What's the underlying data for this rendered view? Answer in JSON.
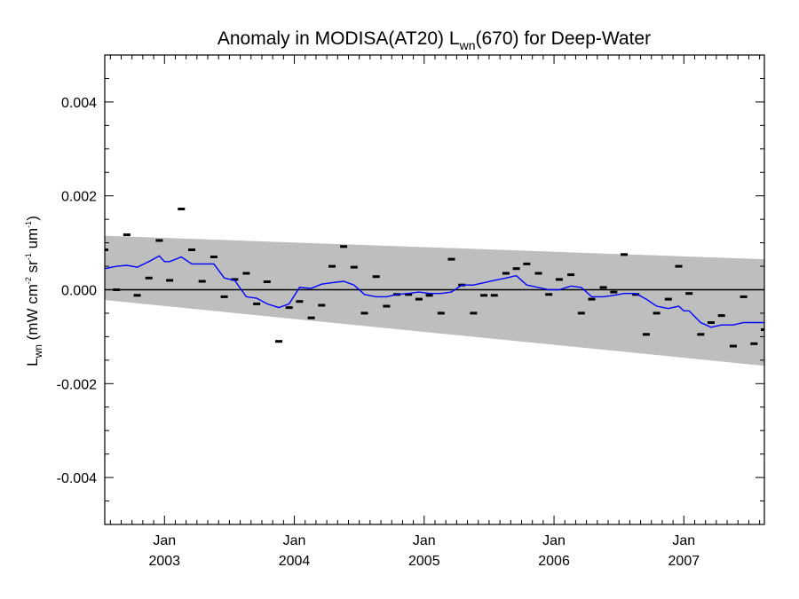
{
  "chart_data": {
    "type": "line",
    "title": {
      "pre": "Anomaly in MODISA(AT20) L",
      "sub": "wn",
      "post": "(670) for Deep-Water"
    },
    "ylabel": {
      "pre": "L",
      "sub": "wn",
      "units_open": " (mW cm",
      "sup1": "-2",
      "units_mid": " sr",
      "sup2": "-1",
      "units_mid2": " um",
      "sup3": "-1",
      "units_close": ")"
    },
    "xlim": [
      2002.54,
      2007.62
    ],
    "ylim": [
      -0.005,
      0.005
    ],
    "x_ticks": [
      {
        "x": 2003.0,
        "month": "Jan",
        "year": "2003"
      },
      {
        "x": 2004.0,
        "month": "Jan",
        "year": "2004"
      },
      {
        "x": 2005.0,
        "month": "Jan",
        "year": "2005"
      },
      {
        "x": 2006.0,
        "month": "Jan",
        "year": "2006"
      },
      {
        "x": 2007.0,
        "month": "Jan",
        "year": "2007"
      }
    ],
    "y_ticks": [
      {
        "value": 0.004,
        "label": "0.004"
      },
      {
        "value": 0.002,
        "label": "0.002"
      },
      {
        "value": 0.0,
        "label": "0.000"
      },
      {
        "value": -0.002,
        "label": "-0.002"
      },
      {
        "value": -0.004,
        "label": "-0.004"
      }
    ],
    "zero_line": 0.0,
    "confidence_band": {
      "x": [
        2002.54,
        2007.62
      ],
      "upper": [
        0.00115,
        0.00065
      ],
      "lower": [
        -0.00022,
        -0.00162
      ],
      "color": "#bebebe"
    },
    "series": [
      {
        "style": "marker",
        "color": "#000000",
        "x": [
          2002.54,
          2002.63,
          2002.71,
          2002.79,
          2002.96,
          2003.04,
          2002.88,
          2003.13,
          2003.21,
          2003.29,
          2003.38,
          2003.46,
          2003.54,
          2003.63,
          2003.71,
          2003.79,
          2003.88,
          2003.96,
          2004.04,
          2004.13,
          2004.21,
          2004.29,
          2004.38,
          2004.46,
          2004.54,
          2004.63,
          2004.71,
          2004.79,
          2004.88,
          2004.96,
          2005.04,
          2005.13,
          2005.21,
          2005.29,
          2005.38,
          2005.46,
          2005.54,
          2005.63,
          2005.71,
          2005.79,
          2005.88,
          2005.96,
          2006.04,
          2006.13,
          2006.21,
          2006.29,
          2006.38,
          2006.46,
          2006.54,
          2006.63,
          2006.71,
          2006.79,
          2006.88,
          2006.96,
          2007.04,
          2007.13,
          2007.21,
          2007.29,
          2007.38,
          2007.46,
          2007.54,
          2007.62
        ],
        "y": [
          0.00085,
          0.0,
          0.00117,
          -0.00012,
          0.00105,
          0.0002,
          0.00025,
          0.00172,
          0.00085,
          0.00018,
          0.0007,
          -0.00015,
          0.00022,
          0.00035,
          -0.0003,
          0.00017,
          -0.0011,
          -0.00038,
          -0.00025,
          -0.0006,
          -0.00033,
          0.0005,
          0.00092,
          0.00048,
          -0.0005,
          0.00028,
          -0.00035,
          -0.0001,
          -0.0001,
          -0.0002,
          -0.00012,
          -0.0005,
          0.00065,
          0.0001,
          -0.0005,
          -0.00012,
          -0.00012,
          0.00035,
          0.00045,
          0.00055,
          0.00035,
          -0.0001,
          0.00022,
          0.00032,
          -0.0005,
          -0.0002,
          5e-05,
          -5e-05,
          0.00075,
          -0.0001,
          -0.00095,
          -0.0005,
          -0.0002,
          0.0005,
          -8e-05,
          -0.00095,
          -0.0007,
          -0.00055,
          -0.0012,
          -0.00015,
          -0.00115,
          -0.00085
        ]
      },
      {
        "style": "line",
        "color": "#0000ff",
        "x": [
          2002.54,
          2002.63,
          2002.71,
          2002.79,
          2002.88,
          2002.96,
          2003.0,
          2003.04,
          2003.13,
          2003.21,
          2003.29,
          2003.38,
          2003.46,
          2003.54,
          2003.63,
          2003.71,
          2003.79,
          2003.88,
          2003.96,
          2004.04,
          2004.13,
          2004.21,
          2004.29,
          2004.38,
          2004.46,
          2004.54,
          2004.63,
          2004.71,
          2004.79,
          2004.88,
          2004.96,
          2005.04,
          2005.13,
          2005.21,
          2005.29,
          2005.38,
          2005.46,
          2005.54,
          2005.63,
          2005.71,
          2005.79,
          2005.88,
          2005.96,
          2006.04,
          2006.13,
          2006.21,
          2006.29,
          2006.38,
          2006.46,
          2006.54,
          2006.63,
          2006.71,
          2006.79,
          2006.88,
          2006.96,
          2007.0,
          2007.04,
          2007.13,
          2007.21,
          2007.29,
          2007.38,
          2007.46,
          2007.54,
          2007.62
        ],
        "y": [
          0.00045,
          0.0005,
          0.00052,
          0.00048,
          0.0006,
          0.00072,
          0.0006,
          0.0006,
          0.0007,
          0.00055,
          0.00055,
          0.00055,
          0.00025,
          0.0002,
          -0.00015,
          -0.00018,
          -0.0003,
          -0.00038,
          -0.0003,
          5e-05,
          3e-05,
          0.00012,
          0.00015,
          0.00018,
          0.0001,
          -0.0001,
          -0.00015,
          -0.00015,
          -0.0001,
          -8e-05,
          -5e-05,
          -8e-05,
          -8e-05,
          -5e-05,
          0.0001,
          0.0001,
          0.00015,
          0.0002,
          0.00025,
          0.0003,
          0.0001,
          5e-05,
          0.0,
          0.0,
          8e-05,
          5e-05,
          -0.00015,
          -0.00015,
          -0.00012,
          -8e-05,
          -8e-05,
          -0.0002,
          -0.00035,
          -0.0004,
          -0.00035,
          -0.00045,
          -0.00045,
          -0.0007,
          -0.0008,
          -0.00075,
          -0.00075,
          -0.0007,
          -0.0007,
          -0.0007
        ]
      }
    ],
    "grid": false,
    "legend": "none"
  }
}
